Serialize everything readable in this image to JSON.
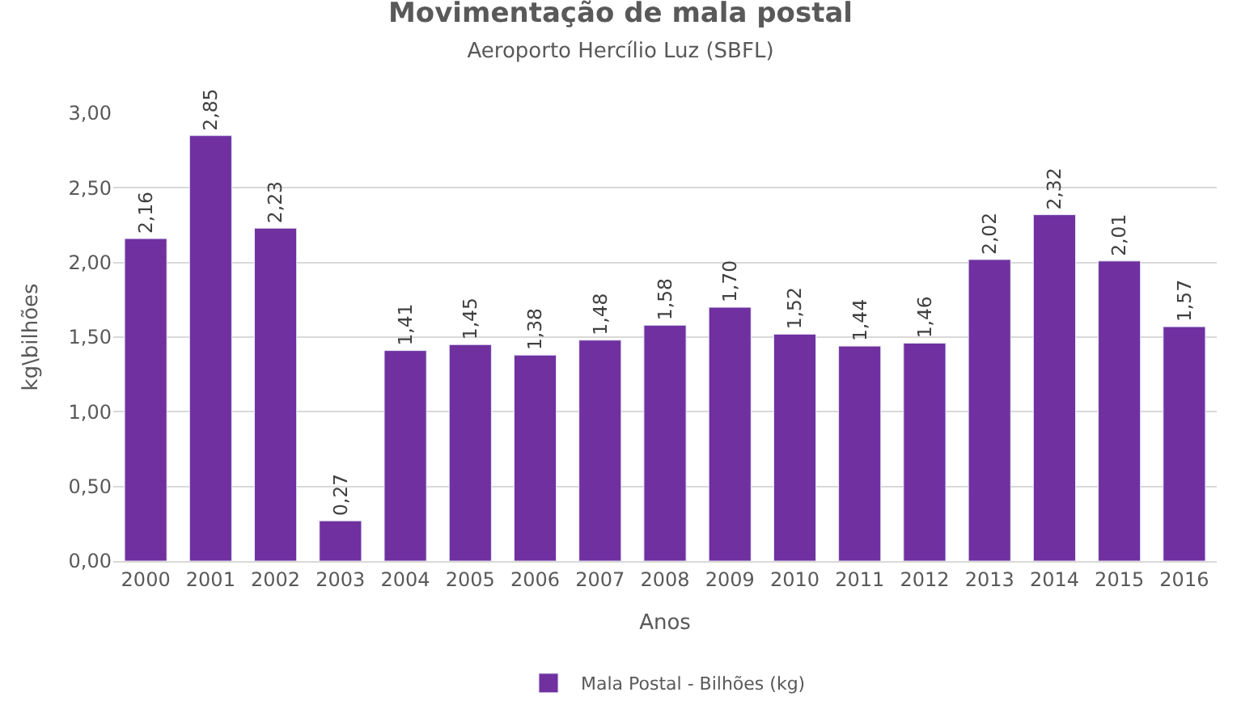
{
  "chart_data": {
    "type": "bar",
    "title": "Movimentação de mala postal",
    "subtitle": "Aeroporto Hercílio Luz (SBFL)",
    "xlabel": "Anos",
    "ylabel": "kg\\bilhões",
    "categories": [
      "2000",
      "2001",
      "2002",
      "2003",
      "2004",
      "2005",
      "2006",
      "2007",
      "2008",
      "2009",
      "2010",
      "2011",
      "2012",
      "2013",
      "2014",
      "2015",
      "2016"
    ],
    "series": [
      {
        "name": "Mala Postal - Bilhões (kg)",
        "color": "#7030a0",
        "values": [
          2.16,
          2.85,
          2.23,
          0.27,
          1.41,
          1.45,
          1.38,
          1.48,
          1.58,
          1.7,
          1.52,
          1.44,
          1.46,
          2.02,
          2.32,
          2.01,
          1.57
        ],
        "value_labels": [
          "2,16",
          "2,85",
          "2,23",
          "0,27",
          "1,41",
          "1,45",
          "1,38",
          "1,48",
          "1,58",
          "1,70",
          "1,52",
          "1,44",
          "1,46",
          "2,02",
          "2,32",
          "2,01",
          "1,57"
        ]
      }
    ],
    "ylim": [
      0,
      3
    ],
    "yticks": [
      {
        "value": 0,
        "label": "0,00"
      },
      {
        "value": 0.5,
        "label": "0,50"
      },
      {
        "value": 1,
        "label": "1,00"
      },
      {
        "value": 1.5,
        "label": "1,50"
      },
      {
        "value": 2,
        "label": "2,00"
      },
      {
        "value": 2.5,
        "label": "2,50"
      },
      {
        "value": 3,
        "label": "3,00"
      }
    ],
    "grid": "y",
    "legend": "bottom"
  }
}
